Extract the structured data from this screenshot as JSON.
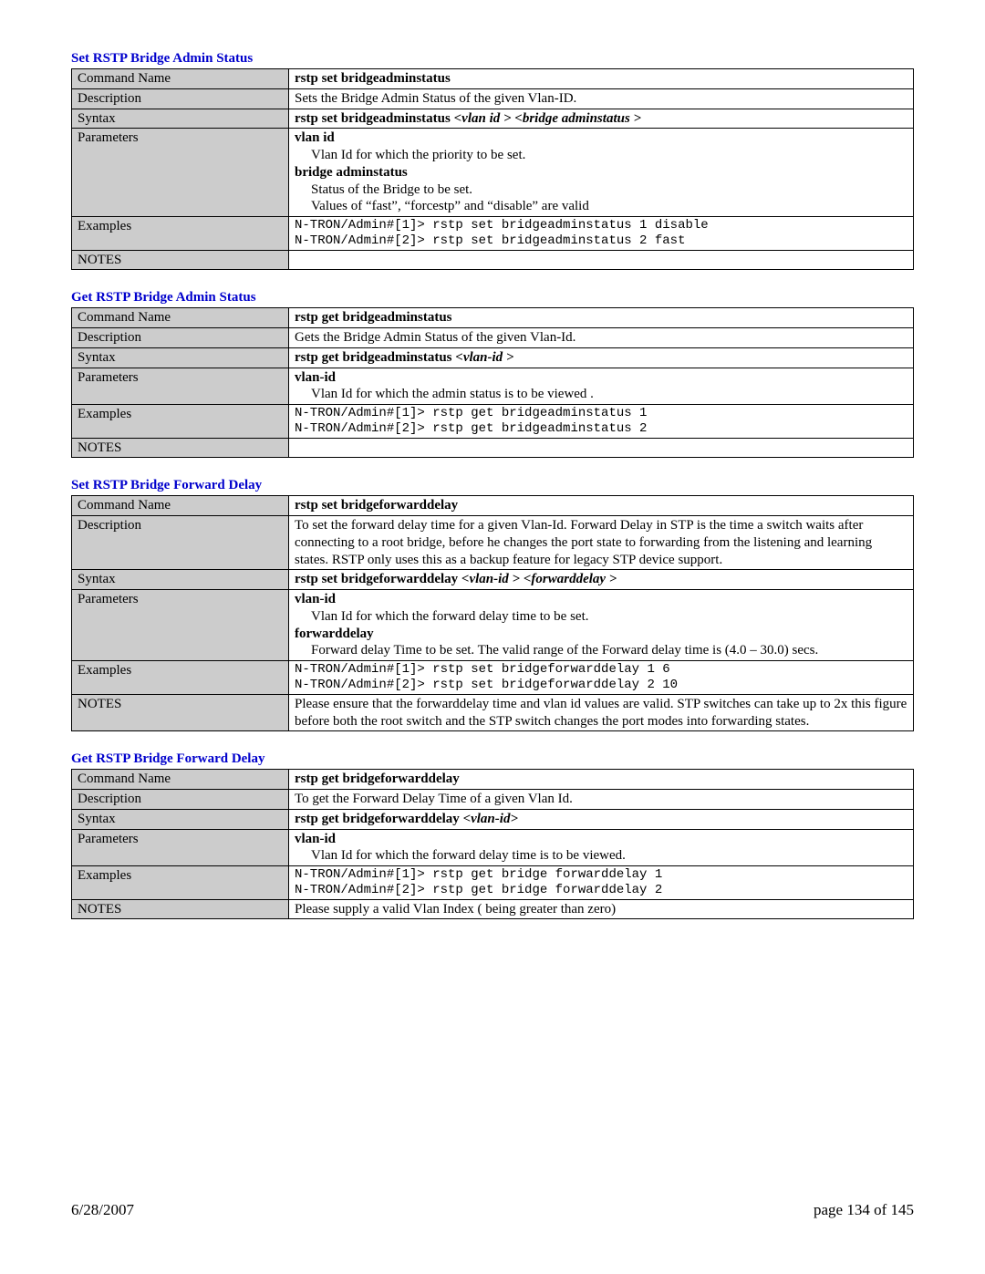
{
  "sections": [
    {
      "title": "Set RSTP Bridge Admin Status",
      "commandName": "rstp set bridgeadminstatus",
      "description": "Sets the Bridge Admin Status of the given Vlan-ID.",
      "syntax": {
        "prefix": "rstp set bridgeadminstatus ",
        "args": [
          "<vlan id >",
          " ",
          "<bridge adminstatus >"
        ]
      },
      "parameters": [
        {
          "name": "vlan id",
          "lines": [
            "Vlan Id for which the priority to be set."
          ]
        },
        {
          "name": "bridge adminstatus",
          "lines": [
            "Status of the Bridge to be set.",
            "Values of “fast”, “forcestp” and “disable” are valid"
          ]
        }
      ],
      "examples": [
        "N-TRON/Admin#[1]> rstp set bridgeadminstatus 1 disable",
        "N-TRON/Admin#[2]> rstp set bridgeadminstatus 2 fast"
      ],
      "notes": ""
    },
    {
      "title": "Get RSTP Bridge Admin Status",
      "commandName": "rstp get bridgeadminstatus",
      "description": "Gets the Bridge Admin Status of the given Vlan-Id.",
      "syntax": {
        "prefix": "rstp get bridgeadminstatus ",
        "args": [
          "<vlan-id >"
        ]
      },
      "parameters": [
        {
          "name": "vlan-id",
          "lines": [
            "Vlan Id for which the admin status is to be viewed ."
          ]
        }
      ],
      "examples": [
        "N-TRON/Admin#[1]> rstp get bridgeadminstatus 1",
        "N-TRON/Admin#[2]> rstp get bridgeadminstatus 2"
      ],
      "notes": ""
    },
    {
      "title": "Set RSTP Bridge Forward Delay",
      "commandName": "rstp set bridgeforwarddelay",
      "description": "To set the forward delay time for a given Vlan-Id.  Forward Delay in STP is the time a switch waits after connecting to a root bridge, before he changes the port state to forwarding from the listening and learning states.  RSTP only uses this as a backup feature for legacy STP device support.",
      "syntax": {
        "prefix": "rstp set bridgeforwarddelay ",
        "args": [
          "<vlan-id >",
          " ",
          "<forwarddelay >"
        ]
      },
      "parameters": [
        {
          "name": "vlan-id",
          "lines": [
            "Vlan Id for which the forward delay time to be set."
          ]
        },
        {
          "name": "forwarddelay",
          "lines": [
            "Forward delay  Time to be set.  The valid range of the Forward delay time is  (4.0 – 30.0) secs."
          ]
        }
      ],
      "examples": [
        "N-TRON/Admin#[1]> rstp set bridgeforwarddelay 1 6",
        "N-TRON/Admin#[2]> rstp set bridgeforwarddelay 2 10"
      ],
      "notes": "Please ensure that the forwarddelay time and vlan id values  are valid.  STP switches can take up to 2x this figure before both the root switch and the STP switch changes the port modes into forwarding states."
    },
    {
      "title": "Get RSTP Bridge Forward Delay",
      "commandName": "rstp get bridgeforwarddelay",
      "description": "To get the Forward Delay Time of a given Vlan Id.",
      "syntax": {
        "prefix": "rstp get bridgeforwarddelay ",
        "args": [
          "<vlan-id>"
        ]
      },
      "parameters": [
        {
          "name": "vlan-id",
          "lines": [
            "Vlan Id for which the forward delay time is to be viewed."
          ]
        }
      ],
      "examples": [
        "N-TRON/Admin#[1]> rstp get bridge forwarddelay 1",
        "N-TRON/Admin#[2]> rstp get bridge forwarddelay 2"
      ],
      "notes": "Please supply a valid Vlan Index ( being greater than zero)"
    }
  ],
  "labels": {
    "commandName": "Command Name",
    "description": "Description",
    "syntax": "Syntax",
    "parameters": "Parameters",
    "examples": "Examples",
    "notes": "NOTES"
  },
  "footer": {
    "date": "6/28/2007",
    "page": "page 134 of 145"
  }
}
